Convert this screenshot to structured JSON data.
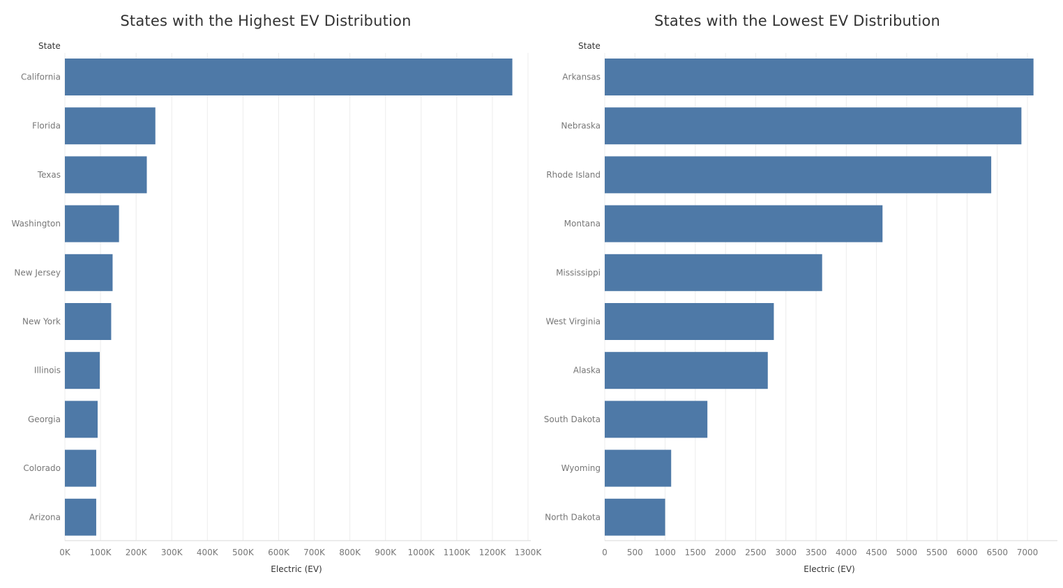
{
  "chart_data": [
    {
      "type": "bar",
      "orientation": "horizontal",
      "title": "States with the Highest EV Distribution",
      "row_header": "State",
      "xlabel": "Electric (EV)",
      "categories": [
        "California",
        "Florida",
        "Texas",
        "Washington",
        "New Jersey",
        "New York",
        "Illinois",
        "Georgia",
        "Colorado",
        "Arizona"
      ],
      "values": [
        1256000,
        254000,
        230000,
        152000,
        134000,
        130000,
        98000,
        92000,
        88000,
        88000
      ],
      "xlim": [
        0,
        1300000
      ],
      "ticks": [
        0,
        100000,
        200000,
        300000,
        400000,
        500000,
        600000,
        700000,
        800000,
        900000,
        1000000,
        1100000,
        1200000,
        1300000
      ],
      "tick_labels": [
        "0K",
        "100K",
        "200K",
        "300K",
        "400K",
        "500K",
        "600K",
        "700K",
        "800K",
        "900K",
        "1000K",
        "1100K",
        "1200K",
        "1300K"
      ],
      "bar_color": "#4e79a7",
      "grid": true
    },
    {
      "type": "bar",
      "orientation": "horizontal",
      "title": "States with the Lowest EV Distribution",
      "row_header": "State",
      "xlabel": "Electric (EV)",
      "categories": [
        "Arkansas",
        "Nebraska",
        "Rhode Island",
        "Montana",
        "Mississippi",
        "West Virginia",
        "Alaska",
        "South Dakota",
        "Wyoming",
        "North Dakota"
      ],
      "values": [
        7100,
        6900,
        6400,
        4600,
        3600,
        2800,
        2700,
        1700,
        1100,
        1000
      ],
      "xlim": [
        0,
        7450
      ],
      "ticks": [
        0,
        500,
        1000,
        1500,
        2000,
        2500,
        3000,
        3500,
        4000,
        4500,
        5000,
        5500,
        6000,
        6500,
        7000
      ],
      "tick_labels": [
        "0",
        "500",
        "1000",
        "1500",
        "2000",
        "2500",
        "3000",
        "3500",
        "4000",
        "4500",
        "5000",
        "5500",
        "6000",
        "6500",
        "7000"
      ],
      "bar_color": "#4e79a7",
      "grid": true
    }
  ]
}
